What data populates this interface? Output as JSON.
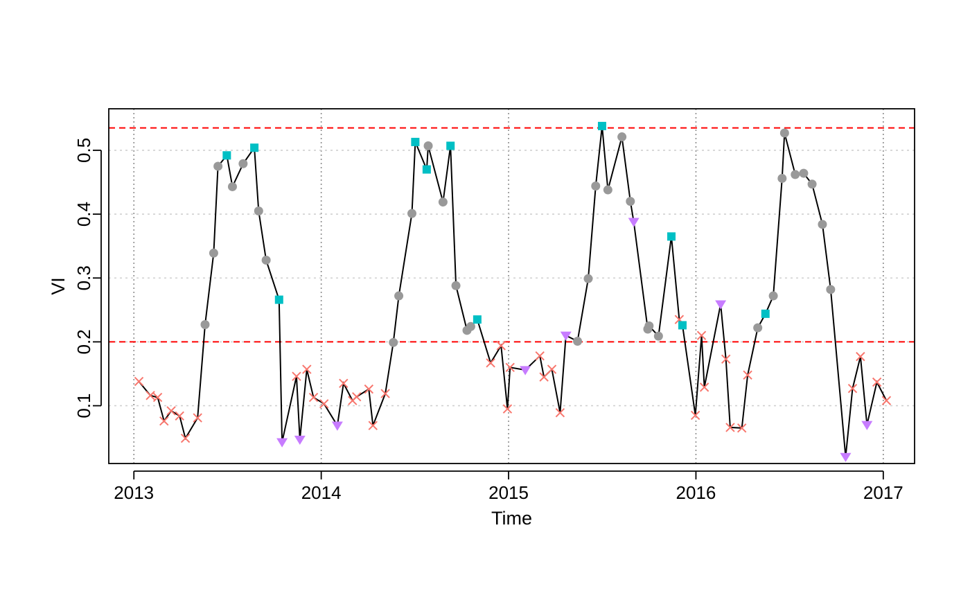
{
  "chart_data": {
    "type": "scatter",
    "title": "",
    "xlabel": "Time",
    "ylabel": "VI",
    "xlim": [
      2012.866,
      2017.167
    ],
    "ylim": [
      0.0095,
      0.565
    ],
    "x_ticks": [
      2013,
      2014,
      2015,
      2016,
      2017
    ],
    "x_tick_labels": [
      "2013",
      "2014",
      "2015",
      "2016",
      "2017"
    ],
    "y_ticks": [
      0.1,
      0.2,
      0.3,
      0.4,
      0.5
    ],
    "y_tick_labels": [
      "0.1",
      "0.2",
      "0.3",
      "0.4",
      "0.5"
    ],
    "grid": true,
    "legend": "none",
    "reference_lines": [
      {
        "y": 0.535,
        "color": "#ff0000",
        "style": "dashed"
      },
      {
        "y": 0.2,
        "color": "#ff0000",
        "style": "dashed"
      }
    ],
    "marker_styles": {
      "cross": {
        "color": "#f8766d",
        "shape": "x"
      },
      "circle": {
        "color": "#999999",
        "shape": "circle"
      },
      "square": {
        "color": "#00bfc4",
        "shape": "square"
      },
      "triangle": {
        "color": "#c77cff",
        "shape": "triangle-down"
      }
    },
    "points": [
      {
        "x": 2013.027,
        "y": 0.138,
        "m": "cross"
      },
      {
        "x": 2013.088,
        "y": 0.116,
        "m": "cross"
      },
      {
        "x": 2013.127,
        "y": 0.113,
        "m": "cross"
      },
      {
        "x": 2013.161,
        "y": 0.076,
        "m": "cross"
      },
      {
        "x": 2013.199,
        "y": 0.092,
        "m": "cross"
      },
      {
        "x": 2013.244,
        "y": 0.084,
        "m": "cross"
      },
      {
        "x": 2013.275,
        "y": 0.049,
        "m": "cross"
      },
      {
        "x": 2013.34,
        "y": 0.081,
        "m": "cross"
      },
      {
        "x": 2013.38,
        "y": 0.227,
        "m": "circle"
      },
      {
        "x": 2013.426,
        "y": 0.339,
        "m": "circle"
      },
      {
        "x": 2013.449,
        "y": 0.475,
        "m": "circle"
      },
      {
        "x": 2013.496,
        "y": 0.492,
        "m": "square"
      },
      {
        "x": 2013.526,
        "y": 0.443,
        "m": "circle"
      },
      {
        "x": 2013.583,
        "y": 0.479,
        "m": "circle"
      },
      {
        "x": 2013.643,
        "y": 0.504,
        "m": "square"
      },
      {
        "x": 2013.666,
        "y": 0.405,
        "m": "circle"
      },
      {
        "x": 2013.706,
        "y": 0.328,
        "m": "circle"
      },
      {
        "x": 2013.775,
        "y": 0.266,
        "m": "square"
      },
      {
        "x": 2013.791,
        "y": 0.043,
        "m": "triangle"
      },
      {
        "x": 2013.868,
        "y": 0.146,
        "m": "cross"
      },
      {
        "x": 2013.886,
        "y": 0.047,
        "m": "triangle"
      },
      {
        "x": 2013.923,
        "y": 0.157,
        "m": "cross"
      },
      {
        "x": 2013.959,
        "y": 0.113,
        "m": "cross"
      },
      {
        "x": 2014.015,
        "y": 0.103,
        "m": "cross"
      },
      {
        "x": 2014.086,
        "y": 0.069,
        "m": "triangle"
      },
      {
        "x": 2014.119,
        "y": 0.135,
        "m": "cross"
      },
      {
        "x": 2014.167,
        "y": 0.108,
        "m": "cross"
      },
      {
        "x": 2014.189,
        "y": 0.114,
        "m": "cross"
      },
      {
        "x": 2014.254,
        "y": 0.126,
        "m": "cross"
      },
      {
        "x": 2014.276,
        "y": 0.069,
        "m": "cross"
      },
      {
        "x": 2014.342,
        "y": 0.119,
        "m": "cross"
      },
      {
        "x": 2014.385,
        "y": 0.199,
        "m": "circle"
      },
      {
        "x": 2014.414,
        "y": 0.272,
        "m": "circle"
      },
      {
        "x": 2014.484,
        "y": 0.401,
        "m": "circle"
      },
      {
        "x": 2014.502,
        "y": 0.513,
        "m": "square"
      },
      {
        "x": 2014.563,
        "y": 0.47,
        "m": "square"
      },
      {
        "x": 2014.571,
        "y": 0.507,
        "m": "circle"
      },
      {
        "x": 2014.65,
        "y": 0.419,
        "m": "circle"
      },
      {
        "x": 2014.69,
        "y": 0.507,
        "m": "square"
      },
      {
        "x": 2014.719,
        "y": 0.288,
        "m": "circle"
      },
      {
        "x": 2014.778,
        "y": 0.218,
        "m": "circle"
      },
      {
        "x": 2014.798,
        "y": 0.224,
        "m": "circle"
      },
      {
        "x": 2014.833,
        "y": 0.235,
        "m": "square"
      },
      {
        "x": 2014.904,
        "y": 0.167,
        "m": "cross"
      },
      {
        "x": 2014.96,
        "y": 0.194,
        "m": "cross"
      },
      {
        "x": 2014.994,
        "y": 0.095,
        "m": "cross"
      },
      {
        "x": 2015.008,
        "y": 0.16,
        "m": "cross"
      },
      {
        "x": 2015.089,
        "y": 0.156,
        "m": "triangle"
      },
      {
        "x": 2015.167,
        "y": 0.178,
        "m": "cross"
      },
      {
        "x": 2015.189,
        "y": 0.145,
        "m": "cross"
      },
      {
        "x": 2015.231,
        "y": 0.157,
        "m": "cross"
      },
      {
        "x": 2015.275,
        "y": 0.089,
        "m": "cross"
      },
      {
        "x": 2015.306,
        "y": 0.21,
        "m": "triangle"
      },
      {
        "x": 2015.368,
        "y": 0.201,
        "m": "circle"
      },
      {
        "x": 2015.425,
        "y": 0.299,
        "m": "circle"
      },
      {
        "x": 2015.465,
        "y": 0.444,
        "m": "circle"
      },
      {
        "x": 2015.499,
        "y": 0.538,
        "m": "square"
      },
      {
        "x": 2015.53,
        "y": 0.438,
        "m": "circle"
      },
      {
        "x": 2015.605,
        "y": 0.521,
        "m": "circle"
      },
      {
        "x": 2015.65,
        "y": 0.42,
        "m": "circle"
      },
      {
        "x": 2015.668,
        "y": 0.388,
        "m": "triangle"
      },
      {
        "x": 2015.743,
        "y": 0.22,
        "m": "circle"
      },
      {
        "x": 2015.75,
        "y": 0.225,
        "m": "circle"
      },
      {
        "x": 2015.8,
        "y": 0.209,
        "m": "circle"
      },
      {
        "x": 2015.869,
        "y": 0.365,
        "m": "square"
      },
      {
        "x": 2015.911,
        "y": 0.235,
        "m": "cross"
      },
      {
        "x": 2015.928,
        "y": 0.226,
        "m": "square"
      },
      {
        "x": 2015.997,
        "y": 0.085,
        "m": "cross"
      },
      {
        "x": 2016.03,
        "y": 0.21,
        "m": "cross"
      },
      {
        "x": 2016.045,
        "y": 0.129,
        "m": "cross"
      },
      {
        "x": 2016.132,
        "y": 0.259,
        "m": "triangle"
      },
      {
        "x": 2016.16,
        "y": 0.173,
        "m": "cross"
      },
      {
        "x": 2016.183,
        "y": 0.066,
        "m": "cross"
      },
      {
        "x": 2016.245,
        "y": 0.065,
        "m": "cross"
      },
      {
        "x": 2016.276,
        "y": 0.148,
        "m": "cross"
      },
      {
        "x": 2016.33,
        "y": 0.222,
        "m": "circle"
      },
      {
        "x": 2016.371,
        "y": 0.244,
        "m": "square"
      },
      {
        "x": 2016.413,
        "y": 0.272,
        "m": "circle"
      },
      {
        "x": 2016.46,
        "y": 0.456,
        "m": "circle"
      },
      {
        "x": 2016.473,
        "y": 0.527,
        "m": "circle"
      },
      {
        "x": 2016.53,
        "y": 0.462,
        "m": "circle"
      },
      {
        "x": 2016.575,
        "y": 0.464,
        "m": "circle"
      },
      {
        "x": 2016.62,
        "y": 0.447,
        "m": "circle"
      },
      {
        "x": 2016.675,
        "y": 0.384,
        "m": "circle"
      },
      {
        "x": 2016.719,
        "y": 0.282,
        "m": "circle"
      },
      {
        "x": 2016.799,
        "y": 0.02,
        "m": "triangle"
      },
      {
        "x": 2016.836,
        "y": 0.127,
        "m": "cross"
      },
      {
        "x": 2016.878,
        "y": 0.177,
        "m": "cross"
      },
      {
        "x": 2016.913,
        "y": 0.07,
        "m": "triangle"
      },
      {
        "x": 2016.966,
        "y": 0.137,
        "m": "cross"
      },
      {
        "x": 2017.017,
        "y": 0.108,
        "m": "cross"
      }
    ]
  }
}
